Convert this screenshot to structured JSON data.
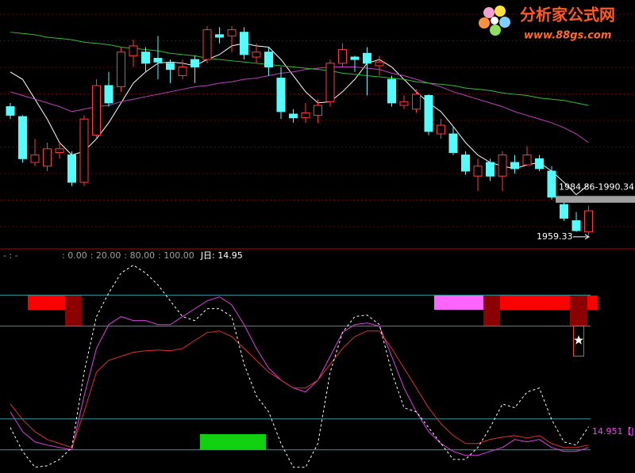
{
  "chart_data": [
    {
      "type": "candlestick",
      "categories": [
        null,
        null,
        null,
        null,
        null,
        null,
        null,
        null,
        null,
        null,
        null,
        null,
        null,
        null,
        null,
        null,
        null,
        null,
        null,
        null,
        null,
        null,
        null,
        null,
        null,
        null,
        null,
        null,
        null,
        null,
        null,
        null,
        null,
        null,
        null,
        null,
        null,
        null,
        null,
        null,
        null,
        null,
        null,
        null,
        null,
        null,
        null,
        null
      ],
      "open": [
        2063,
        2055,
        2018,
        2015,
        2026,
        2024,
        2002,
        2040,
        2080,
        2079,
        2104,
        2107,
        2102,
        2098,
        2088,
        2101,
        2101,
        2121,
        2120,
        2123,
        2103,
        2107,
        2086,
        2057,
        2054,
        2056,
        2067,
        2098,
        2103,
        2106,
        2096,
        2085,
        2064,
        2061,
        2072,
        2041,
        2041,
        2024,
        2007,
        2018,
        2007,
        2018,
        2016,
        2021,
        2011,
        1984,
        1971,
        1962
      ],
      "high": [
        2066,
        2056,
        2037,
        2034,
        2034,
        2027,
        2056,
        2085,
        2091,
        2111,
        2117,
        2111,
        2120,
        2101,
        2101,
        2104,
        2128,
        2127,
        2128,
        2127,
        2114,
        2111,
        2095,
        2061,
        2066,
        2069,
        2101,
        2114,
        2104,
        2111,
        2104,
        2088,
        2072,
        2077,
        2073,
        2053,
        2047,
        2027,
        2021,
        2021,
        2027,
        2024,
        2031,
        2024,
        2015,
        1986,
        1978,
        1983
      ],
      "low": [
        2053,
        2018,
        2015,
        2011,
        2021,
        1999,
        1999,
        2037,
        2063,
        2075,
        2095,
        2091,
        2085,
        2082,
        2085,
        2082,
        2098,
        2114,
        2107,
        2101,
        2098,
        2088,
        2053,
        2050,
        2050,
        2050,
        2063,
        2095,
        2091,
        2072,
        2088,
        2063,
        2061,
        2058,
        2040,
        2037,
        2024,
        2008,
        1995,
        2003,
        1995,
        2009,
        2015,
        2011,
        1988,
        1971,
        1962,
        1959.33
      ],
      "close": [
        2056,
        2021,
        2024,
        2029,
        2029,
        2002,
        2053,
        2080,
        2066,
        2107,
        2112,
        2098,
        2099,
        2093,
        2095,
        2095,
        2125,
        2119,
        2125,
        2105,
        2107,
        2095,
        2059,
        2054,
        2058,
        2064,
        2098,
        2109,
        2101,
        2098,
        2099,
        2066,
        2067,
        2073,
        2043,
        2048,
        2026,
        2011,
        2015,
        2007,
        2024,
        2013,
        2024,
        2013,
        1990,
        1973,
        1963,
        1979
      ],
      "up_color": "#ff3c3c",
      "down_color": "#54fcfc",
      "lines": [
        {
          "color": "#ffffff",
          "values": [
            2091,
            2085,
            2069,
            2053,
            2034,
            2024,
            2027,
            2037,
            2050,
            2066,
            2082,
            2091,
            2098,
            2099,
            2098,
            2096,
            2101,
            2105,
            2112,
            2114,
            2112,
            2111,
            2101,
            2088,
            2075,
            2066,
            2067,
            2075,
            2085,
            2098,
            2101,
            2095,
            2085,
            2075,
            2066,
            2059,
            2047,
            2034,
            2024,
            2018,
            2015,
            2013,
            2016,
            2018,
            2011,
            2002,
            1992,
            2000
          ]
        },
        {
          "color": "#c040c0",
          "values": [
            2075,
            2072,
            2069,
            2066,
            2063,
            2059,
            2061,
            2063,
            2064,
            2067,
            2069,
            2071,
            2073,
            2075,
            2077,
            2079,
            2080,
            2082,
            2083,
            2085,
            2086,
            2088,
            2090,
            2091,
            2093,
            2094,
            2095,
            2095,
            2095,
            2094,
            2093,
            2090,
            2088,
            2085,
            2082,
            2079,
            2075,
            2072,
            2069,
            2066,
            2063,
            2059,
            2056,
            2053,
            2050,
            2046,
            2041,
            2034
          ]
        },
        {
          "color": "#30c030",
          "values": [
            2123,
            2122,
            2121,
            2119,
            2118,
            2117,
            2115,
            2114,
            2113,
            2111,
            2110,
            2109,
            2108,
            2106,
            2105,
            2104,
            2102,
            2101,
            2100,
            2099,
            2098,
            2097,
            2096,
            2095,
            2094,
            2093,
            2092,
            2090,
            2089,
            2088,
            2087,
            2086,
            2085,
            2083,
            2082,
            2081,
            2080,
            2078,
            2077,
            2076,
            2074,
            2073,
            2072,
            2070,
            2069,
            2068,
            2066,
            2064
          ]
        }
      ],
      "ylim": [
        1949,
        2149
      ],
      "annotations": [
        {
          "label": "1984.86-1990.34",
          "range": [
            1984.86,
            1990.34
          ]
        },
        {
          "label": "1959.33",
          "value": 1959.33
        }
      ]
    },
    {
      "type": "line",
      "header": "- : -",
      "readout": "J日: 14.95",
      "end_label": "14.951【J",
      "series": [
        {
          "color": "#e040e0",
          "values": [
            24.6,
            11.8,
            5.1,
            3.1,
            1.5,
            0,
            34.9,
            65.6,
            81.0,
            86.2,
            83.6,
            83.6,
            81.0,
            81.0,
            86.2,
            91.3,
            96.4,
            99.0,
            93.8,
            81.0,
            65.6,
            52.8,
            45.1,
            40.0,
            37.4,
            45.1,
            60.5,
            75.9,
            81.0,
            82.1,
            80.0,
            60.5,
            40.0,
            24.6,
            11.8,
            4.1,
            -1.0,
            -3.6,
            -3.6,
            -1.0,
            1.5,
            6.7,
            5.1,
            6.7,
            1.5,
            -1.0,
            -1.0,
            1.5
          ]
        },
        {
          "color": "#e03030",
          "values": [
            29.7,
            19.5,
            11.8,
            6.7,
            4.1,
            1.5,
            24.6,
            50.3,
            57.9,
            60.5,
            63.1,
            64.1,
            64.6,
            64.1,
            65.6,
            70.8,
            75.9,
            76.9,
            73.3,
            65.6,
            57.9,
            50.3,
            45.1,
            40.0,
            40.0,
            45.1,
            55.4,
            65.6,
            73.3,
            76.9,
            76.9,
            65.6,
            52.8,
            40.0,
            27.2,
            16.9,
            9.2,
            4.1,
            4.1,
            6.7,
            8.2,
            9.2,
            7.7,
            9.2,
            4.1,
            1.5,
            1.5,
            3.1
          ]
        },
        {
          "color": "#ffffff",
          "dash": true,
          "values": [
            14.4,
            -1.0,
            -11.3,
            -10.3,
            -6.2,
            1.5,
            50.3,
            86.2,
            101.5,
            114.4,
            119.5,
            114.4,
            106.7,
            96.4,
            86.2,
            83.6,
            91.3,
            91.3,
            86.2,
            55.4,
            34.9,
            24.6,
            4.1,
            -11.3,
            -11.3,
            4.1,
            50.3,
            75.9,
            86.2,
            87.2,
            81.0,
            50.3,
            27.2,
            24.6,
            14.4,
            4.1,
            -6.2,
            -6.2,
            1.5,
            14.4,
            29.7,
            27.2,
            37.4,
            40.0,
            19.5,
            5.1,
            3.1,
            14.95
          ]
        }
      ],
      "ylim": [
        -15,
        127
      ],
      "yticks": [
        {
          "value": 0,
          "label": ": 0.00"
        },
        {
          "value": 20,
          "label": ": 20.00"
        },
        {
          "value": 80,
          "label": ": 80.00"
        },
        {
          "value": 100,
          "label": ": 100.00"
        }
      ],
      "grid_color": "#3a9aa0"
    }
  ],
  "watermark": {
    "title": "分析家公式网",
    "url": "www.88gs.com"
  }
}
